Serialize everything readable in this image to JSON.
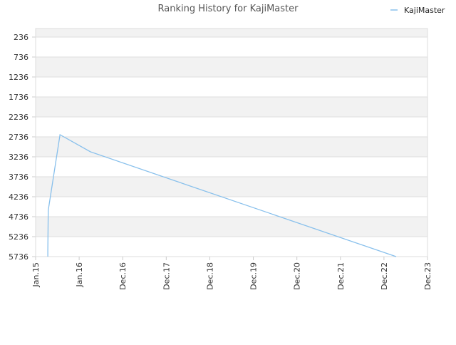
{
  "chart_data": {
    "type": "line",
    "title": "Ranking History for KajiMaster",
    "x": [
      0.28,
      0.28,
      0.29,
      0.56,
      1.26,
      8.28
    ],
    "series": [
      {
        "name": "KajiMaster",
        "color": "#88c0ec",
        "values": [
          5736,
          5600,
          4575,
          2682,
          3111,
          5736
        ]
      }
    ],
    "xlim": [
      0,
      9
    ],
    "xticks": [
      {
        "value": 0,
        "label": "Jan.15"
      },
      {
        "value": 1,
        "label": "Jan.16"
      },
      {
        "value": 2,
        "label": "Dec.16"
      },
      {
        "value": 3,
        "label": "Dec.17"
      },
      {
        "value": 4,
        "label": "Dec.18"
      },
      {
        "value": 5,
        "label": "Dec.19"
      },
      {
        "value": 6,
        "label": "Dec.20"
      },
      {
        "value": 7,
        "label": "Dec.21"
      },
      {
        "value": 8,
        "label": "Dec.22"
      },
      {
        "value": 9,
        "label": "Dec.23"
      }
    ],
    "ylim": [
      5736,
      22
    ],
    "yticks": [
      236,
      736,
      1236,
      1736,
      2236,
      2736,
      3236,
      3736,
      4236,
      4736,
      5236,
      5736
    ],
    "grid": true,
    "legend": "top-right"
  }
}
